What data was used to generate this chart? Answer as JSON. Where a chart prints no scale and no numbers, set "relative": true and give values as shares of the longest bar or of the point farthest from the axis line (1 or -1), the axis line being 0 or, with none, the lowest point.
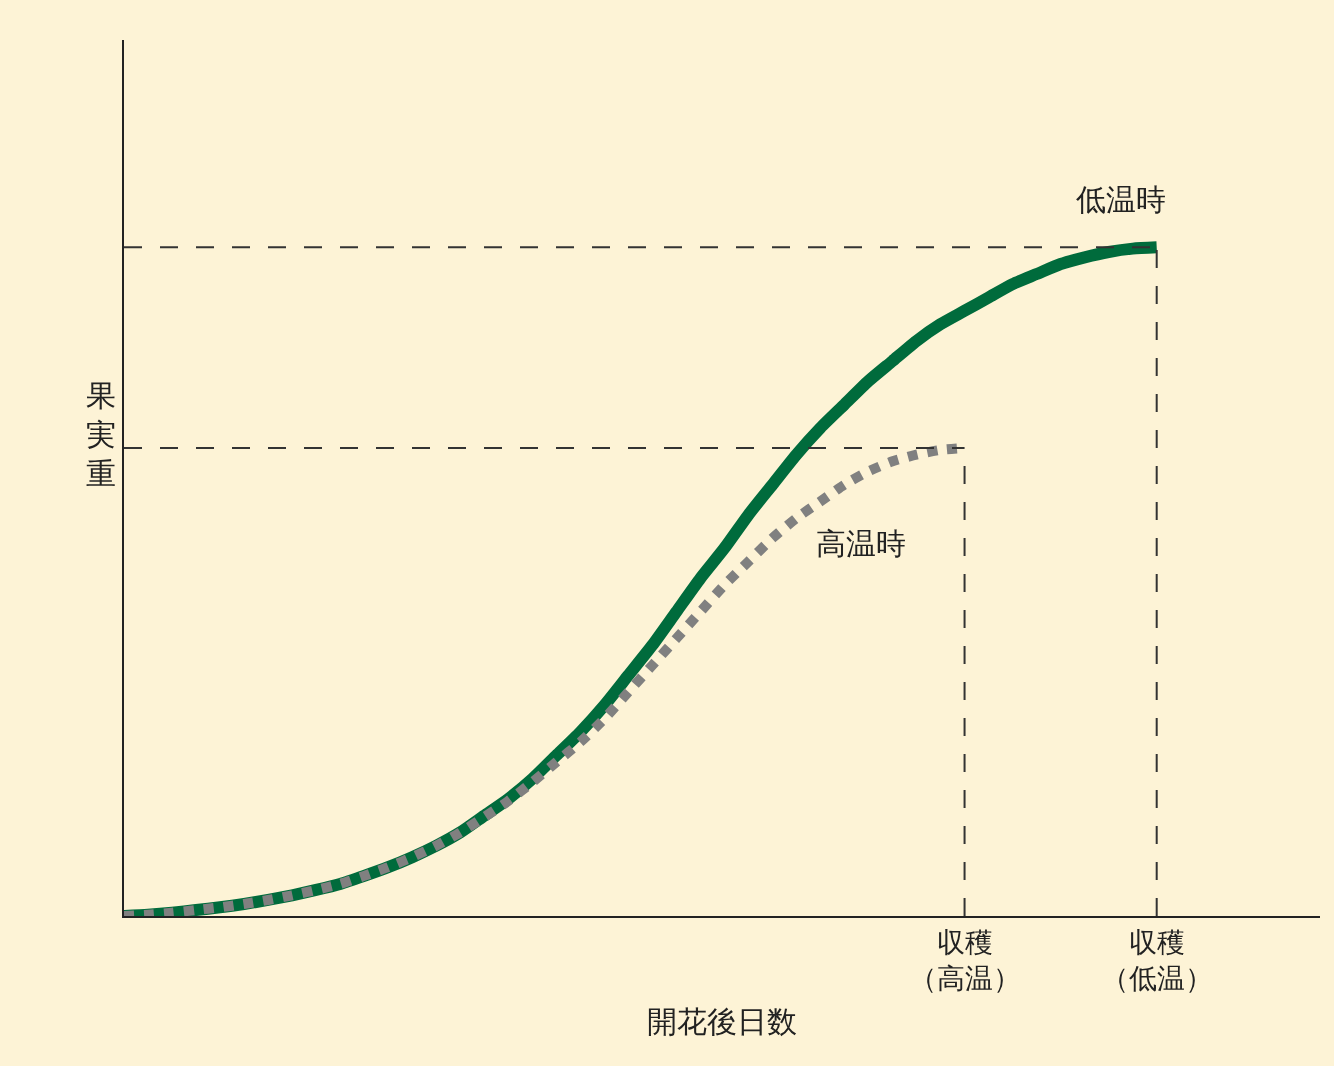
{
  "chart_data": {
    "type": "line",
    "relative": true,
    "xlabel": "開花後日数",
    "ylabel": "果実重",
    "categories": [
      null,
      null,
      null,
      null,
      null,
      null,
      null,
      null,
      null,
      null,
      null,
      null,
      null,
      null,
      null,
      null,
      null,
      null,
      null,
      null,
      null,
      null,
      null,
      null,
      null,
      null,
      null,
      null,
      null,
      null,
      null,
      null,
      null,
      null,
      null,
      "収穫（高温）",
      null,
      null,
      null,
      null,
      null,
      null,
      null,
      "収穫（低温）",
      null,
      null,
      null,
      null,
      null,
      null
    ],
    "series": [
      {
        "name": "低温時",
        "color": "#006b3c",
        "line_style": "solid",
        "values": [
          0,
          0.002,
          0.005,
          0.009,
          0.013,
          0.018,
          0.024,
          0.031,
          0.039,
          0.048,
          0.06,
          0.073,
          0.088,
          0.105,
          0.125,
          0.15,
          0.175,
          0.205,
          0.24,
          0.275,
          0.315,
          0.36,
          0.405,
          0.455,
          0.505,
          0.55,
          0.6,
          0.645,
          0.69,
          0.73,
          0.765,
          0.8,
          0.83,
          0.86,
          0.885,
          0.905,
          0.925,
          0.945,
          0.96,
          0.975,
          0.985,
          0.993,
          0.998,
          1,
          null,
          null,
          null,
          null,
          null,
          null
        ]
      },
      {
        "name": "高温時",
        "color": "#808080",
        "line_style": "dotted",
        "values": [
          0,
          0.002,
          0.005,
          0.009,
          0.013,
          0.018,
          0.024,
          0.031,
          0.039,
          0.048,
          0.06,
          0.073,
          0.088,
          0.105,
          0.125,
          0.148,
          0.172,
          0.2,
          0.23,
          0.26,
          0.295,
          0.335,
          0.375,
          0.415,
          0.455,
          0.495,
          0.53,
          0.565,
          0.595,
          0.62,
          0.645,
          0.665,
          0.68,
          0.69,
          0.697,
          0.7,
          null,
          null,
          null,
          null,
          null,
          null,
          null,
          null,
          null,
          null,
          null,
          null,
          null,
          null
        ]
      }
    ],
    "ref_lines": [
      {
        "axis": "x",
        "value": "収穫（高温）",
        "color": "#333333",
        "line_style": "dashed"
      },
      {
        "axis": "x",
        "value": "収穫（低温）",
        "color": "#333333",
        "line_style": "dashed"
      }
    ],
    "legend": false,
    "grid": false
  }
}
